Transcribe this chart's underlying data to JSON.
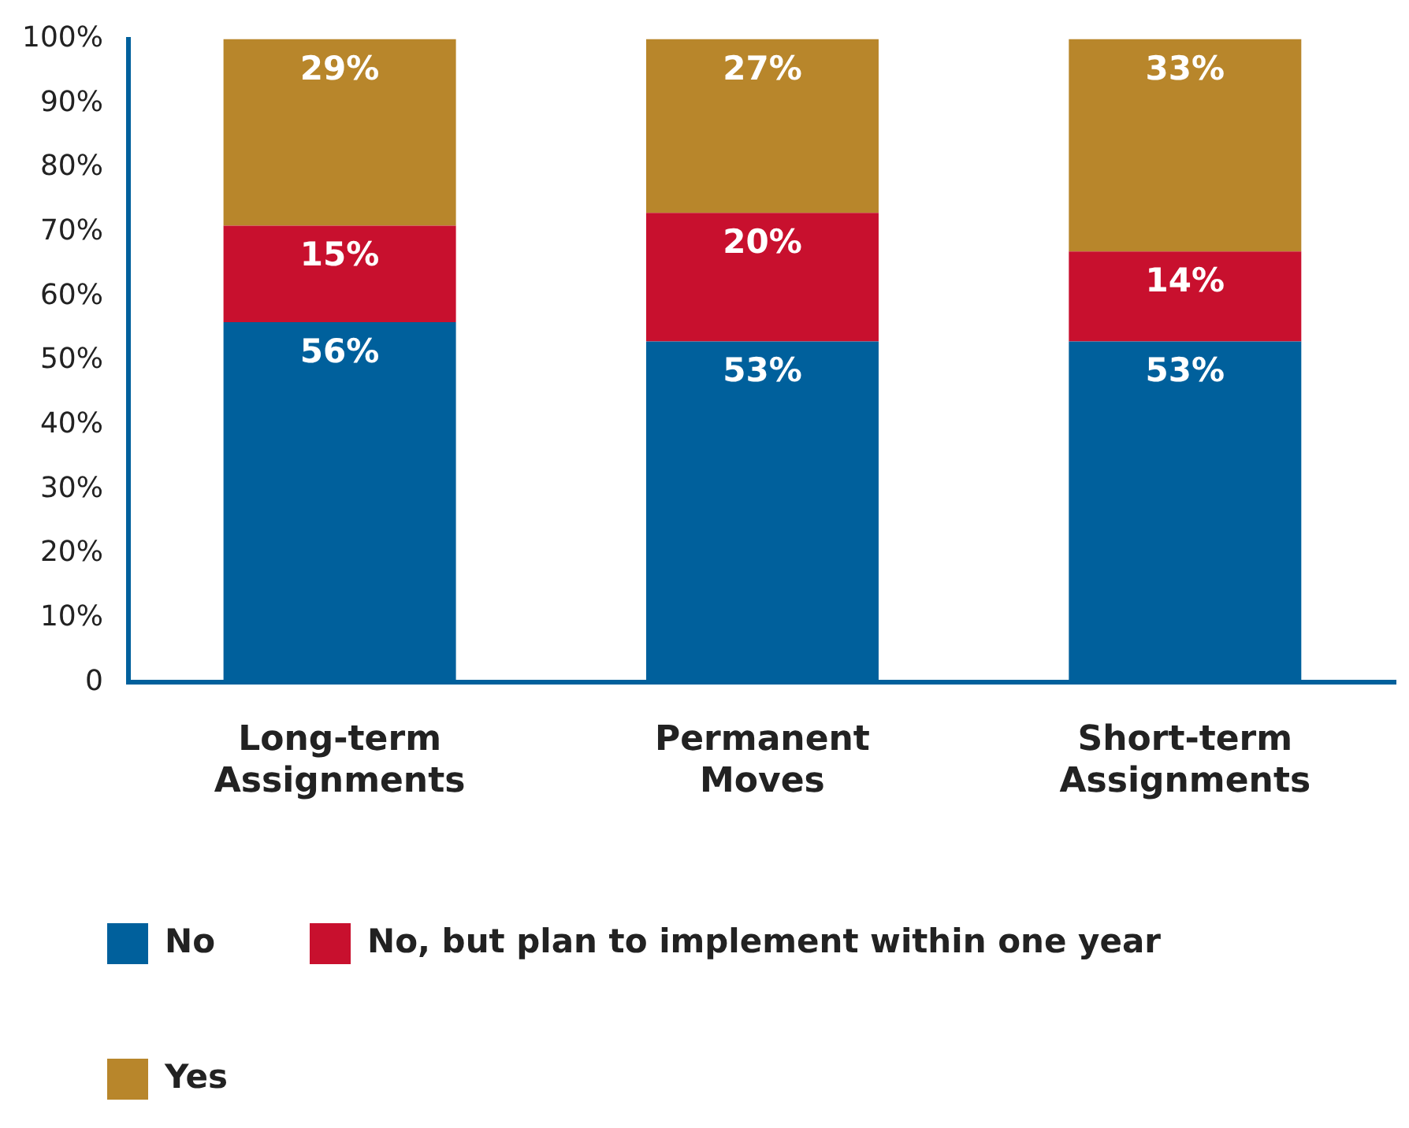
{
  "chart_data": {
    "type": "bar",
    "stacked": true,
    "categories": [
      "Long-term Assignments",
      "Permanent Moves",
      "Short-term Assignments"
    ],
    "series": [
      {
        "name": "No",
        "color": "#00609c",
        "values": [
          56,
          53,
          53
        ],
        "value_labels": [
          "56%",
          "53%",
          "53%"
        ]
      },
      {
        "name": "No, but plan to implement within one year",
        "color": "#c8102e",
        "values": [
          15,
          20,
          14
        ],
        "value_labels": [
          "15%",
          "20%",
          "14%"
        ]
      },
      {
        "name": "Yes",
        "color": "#b8862b",
        "values": [
          29,
          27,
          33
        ],
        "value_labels": [
          "29%",
          "27%",
          "33%"
        ]
      }
    ],
    "ylim": [
      0,
      100
    ],
    "yticks": [
      0,
      {
        "value": 10,
        "label": "10%"
      },
      {
        "value": 20,
        "label": "20%"
      },
      {
        "value": 30,
        "label": "30%"
      },
      {
        "value": 40,
        "label": "40%"
      },
      {
        "value": 50,
        "label": "50%"
      },
      {
        "value": 60,
        "label": "60%"
      },
      {
        "value": 70,
        "label": "70%"
      },
      {
        "value": 80,
        "label": "80%"
      },
      {
        "value": 90,
        "label": "90%"
      },
      {
        "value": 100,
        "label": "100%"
      }
    ],
    "grid": false,
    "legend": "bottom"
  }
}
